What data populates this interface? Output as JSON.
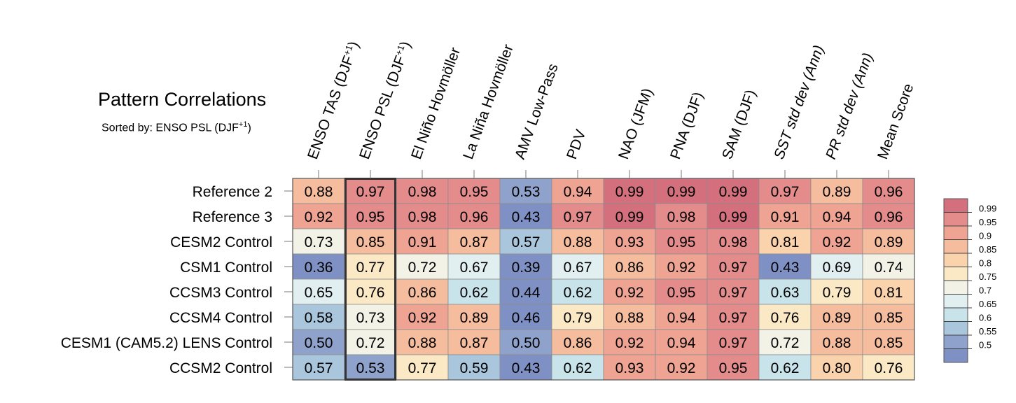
{
  "chart_data": {
    "type": "heatmap",
    "title": "Pattern Correlations",
    "subtitle_prefix": "Sorted by: ENSO PSL (DJF",
    "subtitle_sup": "+1",
    "subtitle_suffix": ")",
    "columns": [
      {
        "label": "ENSO TAS (DJF",
        "sup": "+1",
        "suffix": ")",
        "italic": false
      },
      {
        "label": "ENSO PSL (DJF",
        "sup": "+1",
        "suffix": ")",
        "italic": false
      },
      {
        "label": "El Niño Hovmöller",
        "sup": "",
        "suffix": "",
        "italic": false
      },
      {
        "label": "La Niña Hovmöller",
        "sup": "",
        "suffix": "",
        "italic": false
      },
      {
        "label": "AMV Low-Pass",
        "sup": "",
        "suffix": "",
        "italic": false
      },
      {
        "label": "PDV",
        "sup": "",
        "suffix": "",
        "italic": false
      },
      {
        "label": "NAO (JFM)",
        "sup": "",
        "suffix": "",
        "italic": false
      },
      {
        "label": "PNA (DJF)",
        "sup": "",
        "suffix": "",
        "italic": false
      },
      {
        "label": "SAM (DJF)",
        "sup": "",
        "suffix": "",
        "italic": false
      },
      {
        "label": "SST std dev (Ann)",
        "sup": "",
        "suffix": "",
        "italic": true
      },
      {
        "label": "PR std dev (Ann)",
        "sup": "",
        "suffix": "",
        "italic": true
      },
      {
        "label": "Mean Score",
        "sup": "",
        "suffix": "",
        "italic": false
      }
    ],
    "rows": [
      "Reference 2",
      "Reference 3",
      "CESM2 Control",
      "CSM1 Control",
      "CCSM3 Control",
      "CCSM4 Control",
      "CESM1 (CAM5.2) LENS Control",
      "CCSM2 Control"
    ],
    "cells": [
      [
        "0.88",
        "0.97",
        "0.98",
        "0.95",
        "0.53",
        "0.94",
        "0.99",
        "0.99",
        "0.99",
        "0.97",
        "0.89",
        "0.96"
      ],
      [
        "0.92",
        "0.95",
        "0.98",
        "0.96",
        "0.43",
        "0.97",
        "0.99",
        "0.98",
        "0.99",
        "0.91",
        "0.94",
        "0.96"
      ],
      [
        "0.73",
        "0.85",
        "0.91",
        "0.87",
        "0.57",
        "0.88",
        "0.93",
        "0.95",
        "0.98",
        "0.81",
        "0.92",
        "0.89"
      ],
      [
        "0.36",
        "0.77",
        "0.72",
        "0.67",
        "0.39",
        "0.67",
        "0.86",
        "0.92",
        "0.97",
        "0.43",
        "0.69",
        "0.74"
      ],
      [
        "0.65",
        "0.76",
        "0.86",
        "0.62",
        "0.44",
        "0.62",
        "0.92",
        "0.95",
        "0.97",
        "0.63",
        "0.79",
        "0.81"
      ],
      [
        "0.58",
        "0.73",
        "0.92",
        "0.89",
        "0.46",
        "0.79",
        "0.88",
        "0.94",
        "0.97",
        "0.76",
        "0.89",
        "0.85"
      ],
      [
        "0.50",
        "0.72",
        "0.88",
        "0.87",
        "0.50",
        "0.86",
        "0.92",
        "0.94",
        "0.97",
        "0.72",
        "0.88",
        "0.85"
      ],
      [
        "0.57",
        "0.53",
        "0.77",
        "0.59",
        "0.43",
        "0.62",
        "0.93",
        "0.92",
        "0.95",
        "0.62",
        "0.80",
        "0.76"
      ]
    ],
    "highlighted_column": 1,
    "colorbar": {
      "labels": [
        "0.99",
        "0.95",
        "0.9",
        "0.85",
        "0.8",
        "0.75",
        "0.7",
        "0.65",
        "0.6",
        "0.55",
        "0.5"
      ],
      "boundaries": [
        0.99,
        0.95,
        0.9,
        0.85,
        0.8,
        0.75,
        0.7,
        0.65,
        0.6,
        0.55,
        0.5
      ],
      "colors": [
        "#d4707e",
        "#e48b8c",
        "#eea393",
        "#f5bd9e",
        "#fad3ad",
        "#fbe8c4",
        "#f2f2e6",
        "#e2eff1",
        "#c9e3ea",
        "#a9c6dc",
        "#8fa2cb",
        "#7e90c4"
      ]
    }
  }
}
